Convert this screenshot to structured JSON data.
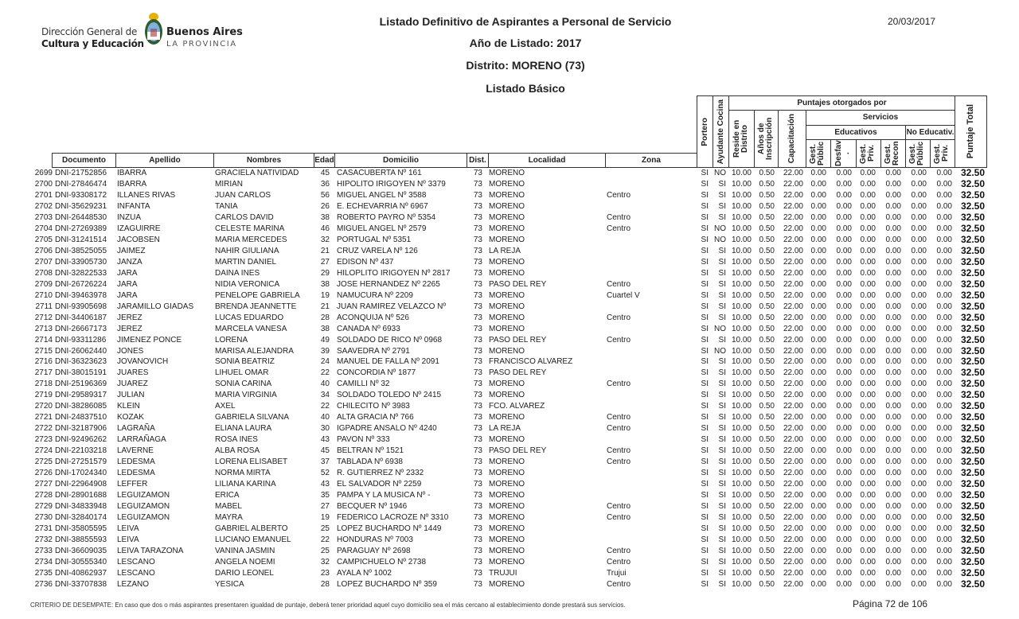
{
  "logo": {
    "line1": "Dirección General de",
    "line2": "Cultura y Educación",
    "brand1": "Buenos Aires",
    "brand2": "LA PROVINCIA"
  },
  "header": {
    "title": "Listado Definitivo de Aspirantes a Personal de Servicio",
    "year": "Año de Listado: 2017",
    "district": "Distrito: MORENO (73)",
    "list_type": "Listado Básico",
    "date": "20/03/2017"
  },
  "columns": {
    "documento": "Documento",
    "apellido": "Apellido",
    "nombres": "Nombres",
    "edad": "Edad",
    "domicilio": "Domicilio",
    "dist": "Dist.",
    "localidad": "Localidad",
    "zona": "Zona",
    "portero": "Portero",
    "ayudante": "Ayudante Cocina",
    "puntajes": "Puntajes otorgados por",
    "reside": "Reside en Distrito",
    "anios": "Años de Inscripción",
    "capacitacion": "Capacitación",
    "servicios": "Servicios",
    "educativos": "Educativos",
    "no_educativos": "No Educativ.",
    "gest_public": "Gest. Públic",
    "desfav": "Desfav .",
    "gest_priv": "Gest. Priv.",
    "gest_recon": "Gest. Recon",
    "ne_gest_public": "Gest. Públic",
    "ne_gest_priv": "Gest. Priv.",
    "total": "Puntaje Total"
  },
  "rows": [
    [
      "2699",
      "DNI-21752856",
      "IBARRA",
      "GRACIELA NATIVIDAD",
      "45",
      "CASACUBERTA Nº 161",
      "73",
      "MORENO",
      "",
      "SI",
      "NO",
      "10.00",
      "0.50",
      "22.00",
      "0.00",
      "0.00",
      "0.00",
      "0.00",
      "0.00",
      "0.00",
      "32.50"
    ],
    [
      "2700",
      "DNI-27846474",
      "IBARRA",
      "MIRIAN",
      "36",
      "HIPOLITO IRIGOYEN Nº 3379",
      "73",
      "MORENO",
      "",
      "SI",
      "SI",
      "10.00",
      "0.50",
      "22.00",
      "0.00",
      "0.00",
      "0.00",
      "0.00",
      "0.00",
      "0.00",
      "32.50"
    ],
    [
      "2701",
      "DNI-93308172",
      "ILLANES RIVAS",
      "JUAN CARLOS",
      "56",
      "MIGUEL ANGEL Nº 3588",
      "73",
      "MORENO",
      "Centro",
      "SI",
      "SI",
      "10.00",
      "0.50",
      "22.00",
      "0.00",
      "0.00",
      "0.00",
      "0.00",
      "0.00",
      "0.00",
      "32.50"
    ],
    [
      "2702",
      "DNI-35629231",
      "INFANTA",
      "TANIA",
      "26",
      "E. ECHEVARRIA Nº 6967",
      "73",
      "MORENO",
      "",
      "SI",
      "SI",
      "10.00",
      "0.50",
      "22.00",
      "0.00",
      "0.00",
      "0.00",
      "0.00",
      "0.00",
      "0.00",
      "32.50"
    ],
    [
      "2703",
      "DNI-26448530",
      "INZUA",
      "CARLOS DAVID",
      "38",
      "ROBERTO PAYRO Nº 5354",
      "73",
      "MORENO",
      "Centro",
      "SI",
      "SI",
      "10.00",
      "0.50",
      "22.00",
      "0.00",
      "0.00",
      "0.00",
      "0.00",
      "0.00",
      "0.00",
      "32.50"
    ],
    [
      "2704",
      "DNI-27269389",
      "IZAGUIRRE",
      "CELESTE MARINA",
      "46",
      "MIGUEL ANGEL Nº 2579",
      "73",
      "MORENO",
      "Centro",
      "SI",
      "NO",
      "10.00",
      "0.50",
      "22.00",
      "0.00",
      "0.00",
      "0.00",
      "0.00",
      "0.00",
      "0.00",
      "32.50"
    ],
    [
      "2705",
      "DNI-31241514",
      "JACOBSEN",
      "MARIA MERCEDES",
      "32",
      "PORTUGAL Nº 5351",
      "73",
      "MORENO",
      "",
      "SI",
      "NO",
      "10.00",
      "0.50",
      "22.00",
      "0.00",
      "0.00",
      "0.00",
      "0.00",
      "0.00",
      "0.00",
      "32.50"
    ],
    [
      "2706",
      "DNI-38525055",
      "JAIMEZ",
      "NAHIR GIULIANA",
      "21",
      "CRUZ VARELA Nº 126",
      "73",
      "LA REJA",
      "",
      "SI",
      "SI",
      "10.00",
      "0.50",
      "22.00",
      "0.00",
      "0.00",
      "0.00",
      "0.00",
      "0.00",
      "0.00",
      "32.50"
    ],
    [
      "2707",
      "DNI-33905730",
      "JANZA",
      "MARTIN DANIEL",
      "27",
      "EDISON Nº 437",
      "73",
      "MORENO",
      "",
      "SI",
      "SI",
      "10.00",
      "0.50",
      "22.00",
      "0.00",
      "0.00",
      "0.00",
      "0.00",
      "0.00",
      "0.00",
      "32.50"
    ],
    [
      "2708",
      "DNI-32822533",
      "JARA",
      "DAINA INES",
      "29",
      "HILOPLITO IRIGOYEN Nº 2817",
      "73",
      "MORENO",
      "",
      "SI",
      "SI",
      "10.00",
      "0.50",
      "22.00",
      "0.00",
      "0.00",
      "0.00",
      "0.00",
      "0.00",
      "0.00",
      "32.50"
    ],
    [
      "2709",
      "DNI-26726224",
      "JARA",
      "NIDIA VERONICA",
      "38",
      "JOSE HERNANDEZ Nº 2265",
      "73",
      "PASO DEL REY",
      "Centro",
      "SI",
      "SI",
      "10.00",
      "0.50",
      "22.00",
      "0.00",
      "0.00",
      "0.00",
      "0.00",
      "0.00",
      "0.00",
      "32.50"
    ],
    [
      "2710",
      "DNI-39463978",
      "JARA",
      "PENELOPE GABRIELA",
      "19",
      "NAMUCURA Nº 2209",
      "73",
      "MORENO",
      "Cuartel V",
      "SI",
      "SI",
      "10.00",
      "0.50",
      "22.00",
      "0.00",
      "0.00",
      "0.00",
      "0.00",
      "0.00",
      "0.00",
      "32.50"
    ],
    [
      "2711",
      "DNI-93905698",
      "JARAMILLO GIADAS",
      "BRENDA JEANNETTE",
      "21",
      "JUAN RAMIREZ VELAZCO Nº",
      "73",
      "MORENO",
      "",
      "SI",
      "SI",
      "10.00",
      "0.50",
      "22.00",
      "0.00",
      "0.00",
      "0.00",
      "0.00",
      "0.00",
      "0.00",
      "32.50"
    ],
    [
      "2712",
      "DNI-34406187",
      "JEREZ",
      "LUCAS EDUARDO",
      "28",
      "ACONQUIJA Nº 526",
      "73",
      "MORENO",
      "Centro",
      "SI",
      "SI",
      "10.00",
      "0.50",
      "22.00",
      "0.00",
      "0.00",
      "0.00",
      "0.00",
      "0.00",
      "0.00",
      "32.50"
    ],
    [
      "2713",
      "DNI-26667173",
      "JEREZ",
      "MARCELA VANESA",
      "38",
      "CANADA Nº 6933",
      "73",
      "MORENO",
      "",
      "SI",
      "NO",
      "10.00",
      "0.50",
      "22.00",
      "0.00",
      "0.00",
      "0.00",
      "0.00",
      "0.00",
      "0.00",
      "32.50"
    ],
    [
      "2714",
      "DNI-93311286",
      "JIMENEZ PONCE",
      "LORENA",
      "49",
      "SOLDADO DE RICO Nº 0968",
      "73",
      "PASO DEL REY",
      "Centro",
      "SI",
      "SI",
      "10.00",
      "0.50",
      "22.00",
      "0.00",
      "0.00",
      "0.00",
      "0.00",
      "0.00",
      "0.00",
      "32.50"
    ],
    [
      "2715",
      "DNI-26062440",
      "JONES",
      "MARISA ALEJANDRA",
      "39",
      "SAAVEDRA Nº 2791",
      "73",
      "MORENO",
      "",
      "SI",
      "NO",
      "10.00",
      "0.50",
      "22.00",
      "0.00",
      "0.00",
      "0.00",
      "0.00",
      "0.00",
      "0.00",
      "32.50"
    ],
    [
      "2716",
      "DNI-36323623",
      "JOVANOVICH",
      "SONIA BEATRIZ",
      "24",
      "MANUEL DE FALLA Nº 2091",
      "73",
      "FRANCISCO ALVAREZ",
      "",
      "SI",
      "SI",
      "10.00",
      "0.50",
      "22.00",
      "0.00",
      "0.00",
      "0.00",
      "0.00",
      "0.00",
      "0.00",
      "32.50"
    ],
    [
      "2717",
      "DNI-38015191",
      "JUARES",
      "LIHUEL OMAR",
      "22",
      "CONCORDIA Nº 1877",
      "73",
      "PASO DEL REY",
      "",
      "SI",
      "SI",
      "10.00",
      "0.50",
      "22.00",
      "0.00",
      "0.00",
      "0.00",
      "0.00",
      "0.00",
      "0.00",
      "32.50"
    ],
    [
      "2718",
      "DNI-25196369",
      "JUAREZ",
      "SONIA CARINA",
      "40",
      "CAMILLI Nº 32",
      "73",
      "MORENO",
      "Centro",
      "SI",
      "SI",
      "10.00",
      "0.50",
      "22.00",
      "0.00",
      "0.00",
      "0.00",
      "0.00",
      "0.00",
      "0.00",
      "32.50"
    ],
    [
      "2719",
      "DNI-29589317",
      "JULIAN",
      "MARIA VIRGINIA",
      "34",
      "SOLDADO TOLEDO Nº 2415",
      "73",
      "MORENO",
      "",
      "SI",
      "SI",
      "10.00",
      "0.50",
      "22.00",
      "0.00",
      "0.00",
      "0.00",
      "0.00",
      "0.00",
      "0.00",
      "32.50"
    ],
    [
      "2720",
      "DNI-38286085",
      "KLEIN",
      "AXEL",
      "22",
      "CHILECITO Nº 3983",
      "73",
      "FCO. ALVAREZ",
      "",
      "SI",
      "SI",
      "10.00",
      "0.50",
      "22.00",
      "0.00",
      "0.00",
      "0.00",
      "0.00",
      "0.00",
      "0.00",
      "32.50"
    ],
    [
      "2721",
      "DNI-24837510",
      "KOZAK",
      "GABRIELA SILVANA",
      "40",
      "ALTA GRACIA Nº 766",
      "73",
      "MORENO",
      "Centro",
      "SI",
      "SI",
      "10.00",
      "0.50",
      "22.00",
      "0.00",
      "0.00",
      "0.00",
      "0.00",
      "0.00",
      "0.00",
      "32.50"
    ],
    [
      "2722",
      "DNI-32187906",
      "LAGRAÑA",
      "ELIANA LAURA",
      "30",
      "IGPADRE ANSALO Nº 4240",
      "73",
      "LA REJA",
      "Centro",
      "SI",
      "SI",
      "10.00",
      "0.50",
      "22.00",
      "0.00",
      "0.00",
      "0.00",
      "0.00",
      "0.00",
      "0.00",
      "32.50"
    ],
    [
      "2723",
      "DNI-92496262",
      "LARRAÑAGA",
      "ROSA INES",
      "43",
      "PAVON Nº 333",
      "73",
      "MORENO",
      "",
      "SI",
      "SI",
      "10.00",
      "0.50",
      "22.00",
      "0.00",
      "0.00",
      "0.00",
      "0.00",
      "0.00",
      "0.00",
      "32.50"
    ],
    [
      "2724",
      "DNI-22103218",
      "LAVERNE",
      "ALBA ROSA",
      "45",
      "BELTRAN Nº 1521",
      "73",
      "PASO DEL REY",
      "Centro",
      "SI",
      "SI",
      "10.00",
      "0.50",
      "22.00",
      "0.00",
      "0.00",
      "0.00",
      "0.00",
      "0.00",
      "0.00",
      "32.50"
    ],
    [
      "2725",
      "DNI-27251579",
      "LEDESMA",
      "LORENA ELISABET",
      "37",
      "TABLADA Nº 6938",
      "73",
      "MORENO",
      "Centro",
      "SI",
      "SI",
      "10.00",
      "0.50",
      "22.00",
      "0.00",
      "0.00",
      "0.00",
      "0.00",
      "0.00",
      "0.00",
      "32.50"
    ],
    [
      "2726",
      "DNI-17024340",
      "LEDESMA",
      "NORMA MIRTA",
      "52",
      "R. GUTIERREZ Nº 2332",
      "73",
      "MORENO",
      "",
      "SI",
      "SI",
      "10.00",
      "0.50",
      "22.00",
      "0.00",
      "0.00",
      "0.00",
      "0.00",
      "0.00",
      "0.00",
      "32.50"
    ],
    [
      "2727",
      "DNI-22964908",
      "LEFFER",
      "LILIANA KARINA",
      "43",
      "EL SALVADOR Nº 2259",
      "73",
      "MORENO",
      "",
      "SI",
      "SI",
      "10.00",
      "0.50",
      "22.00",
      "0.00",
      "0.00",
      "0.00",
      "0.00",
      "0.00",
      "0.00",
      "32.50"
    ],
    [
      "2728",
      "DNI-28901688",
      "LEGUIZAMON",
      "ERICA",
      "35",
      "PAMPA Y LA MUSICA Nº -",
      "73",
      "MORENO",
      "",
      "SI",
      "SI",
      "10.00",
      "0.50",
      "22.00",
      "0.00",
      "0.00",
      "0.00",
      "0.00",
      "0.00",
      "0.00",
      "32.50"
    ],
    [
      "2729",
      "DNI-34833948",
      "LEGUIZAMON",
      "MABEL",
      "27",
      "BECQUER Nº 1946",
      "73",
      "MORENO",
      "Centro",
      "SI",
      "SI",
      "10.00",
      "0.50",
      "22.00",
      "0.00",
      "0.00",
      "0.00",
      "0.00",
      "0.00",
      "0.00",
      "32.50"
    ],
    [
      "2730",
      "DNI-32840174",
      "LEGUIZAMON",
      "MAYRA",
      "19",
      "FEDERICO LACROZE Nº 3310",
      "73",
      "MORENO",
      "Centro",
      "SI",
      "SI",
      "10.00",
      "0.50",
      "22.00",
      "0.00",
      "0.00",
      "0.00",
      "0.00",
      "0.00",
      "0.00",
      "32.50"
    ],
    [
      "2731",
      "DNI-35805595",
      "LEIVA",
      "GABRIEL ALBERTO",
      "25",
      "LOPEZ BUCHARDO Nº 1449",
      "73",
      "MORENO",
      "",
      "SI",
      "SI",
      "10.00",
      "0.50",
      "22.00",
      "0.00",
      "0.00",
      "0.00",
      "0.00",
      "0.00",
      "0.00",
      "32.50"
    ],
    [
      "2732",
      "DNI-38855593",
      "LEIVA",
      "LUCIANO EMANUEL",
      "22",
      "HONDURAS Nº 7003",
      "73",
      "MORENO",
      "",
      "SI",
      "SI",
      "10.00",
      "0.50",
      "22.00",
      "0.00",
      "0.00",
      "0.00",
      "0.00",
      "0.00",
      "0.00",
      "32.50"
    ],
    [
      "2733",
      "DNI-36609035",
      "LEIVA TARAZONA",
      "VANINA JASMIN",
      "25",
      "PARAGUAY Nº 2698",
      "73",
      "MORENO",
      "Centro",
      "SI",
      "SI",
      "10.00",
      "0.50",
      "22.00",
      "0.00",
      "0.00",
      "0.00",
      "0.00",
      "0.00",
      "0.00",
      "32.50"
    ],
    [
      "2734",
      "DNI-30555340",
      "LESCANO",
      "ANGELA NOEMI",
      "32",
      "CAMPICHUELO Nº 2738",
      "73",
      "MORENO",
      "Centro",
      "SI",
      "SI",
      "10.00",
      "0.50",
      "22.00",
      "0.00",
      "0.00",
      "0.00",
      "0.00",
      "0.00",
      "0.00",
      "32.50"
    ],
    [
      "2735",
      "DNI-40862937",
      "LESCANO",
      "DARIO LEONEL",
      "23",
      "AYALA Nº 1002",
      "73",
      "TRUJUI",
      "Trujui",
      "SI",
      "SI",
      "10.00",
      "0.50",
      "22.00",
      "0.00",
      "0.00",
      "0.00",
      "0.00",
      "0.00",
      "0.00",
      "32.50"
    ],
    [
      "2736",
      "DNI-33707838",
      "LEZANO",
      "YESICA",
      "28",
      "LOPEZ BUCHARDO Nº 359",
      "73",
      "MORENO",
      "Centro",
      "SI",
      "SI",
      "10.00",
      "0.50",
      "22.00",
      "0.00",
      "0.00",
      "0.00",
      "0.00",
      "0.00",
      "0.00",
      "32.50"
    ]
  ],
  "footer": {
    "criterio": "CRITERIO DE DESEMPATE: En caso que dos o más aspirantes presentaren igualdad de puntaje, deberá tener prioridad aquel cuyo domicilio sea el más cercano al establecimiento donde prestará sus servicios.",
    "page": "Página 72 de 106"
  }
}
